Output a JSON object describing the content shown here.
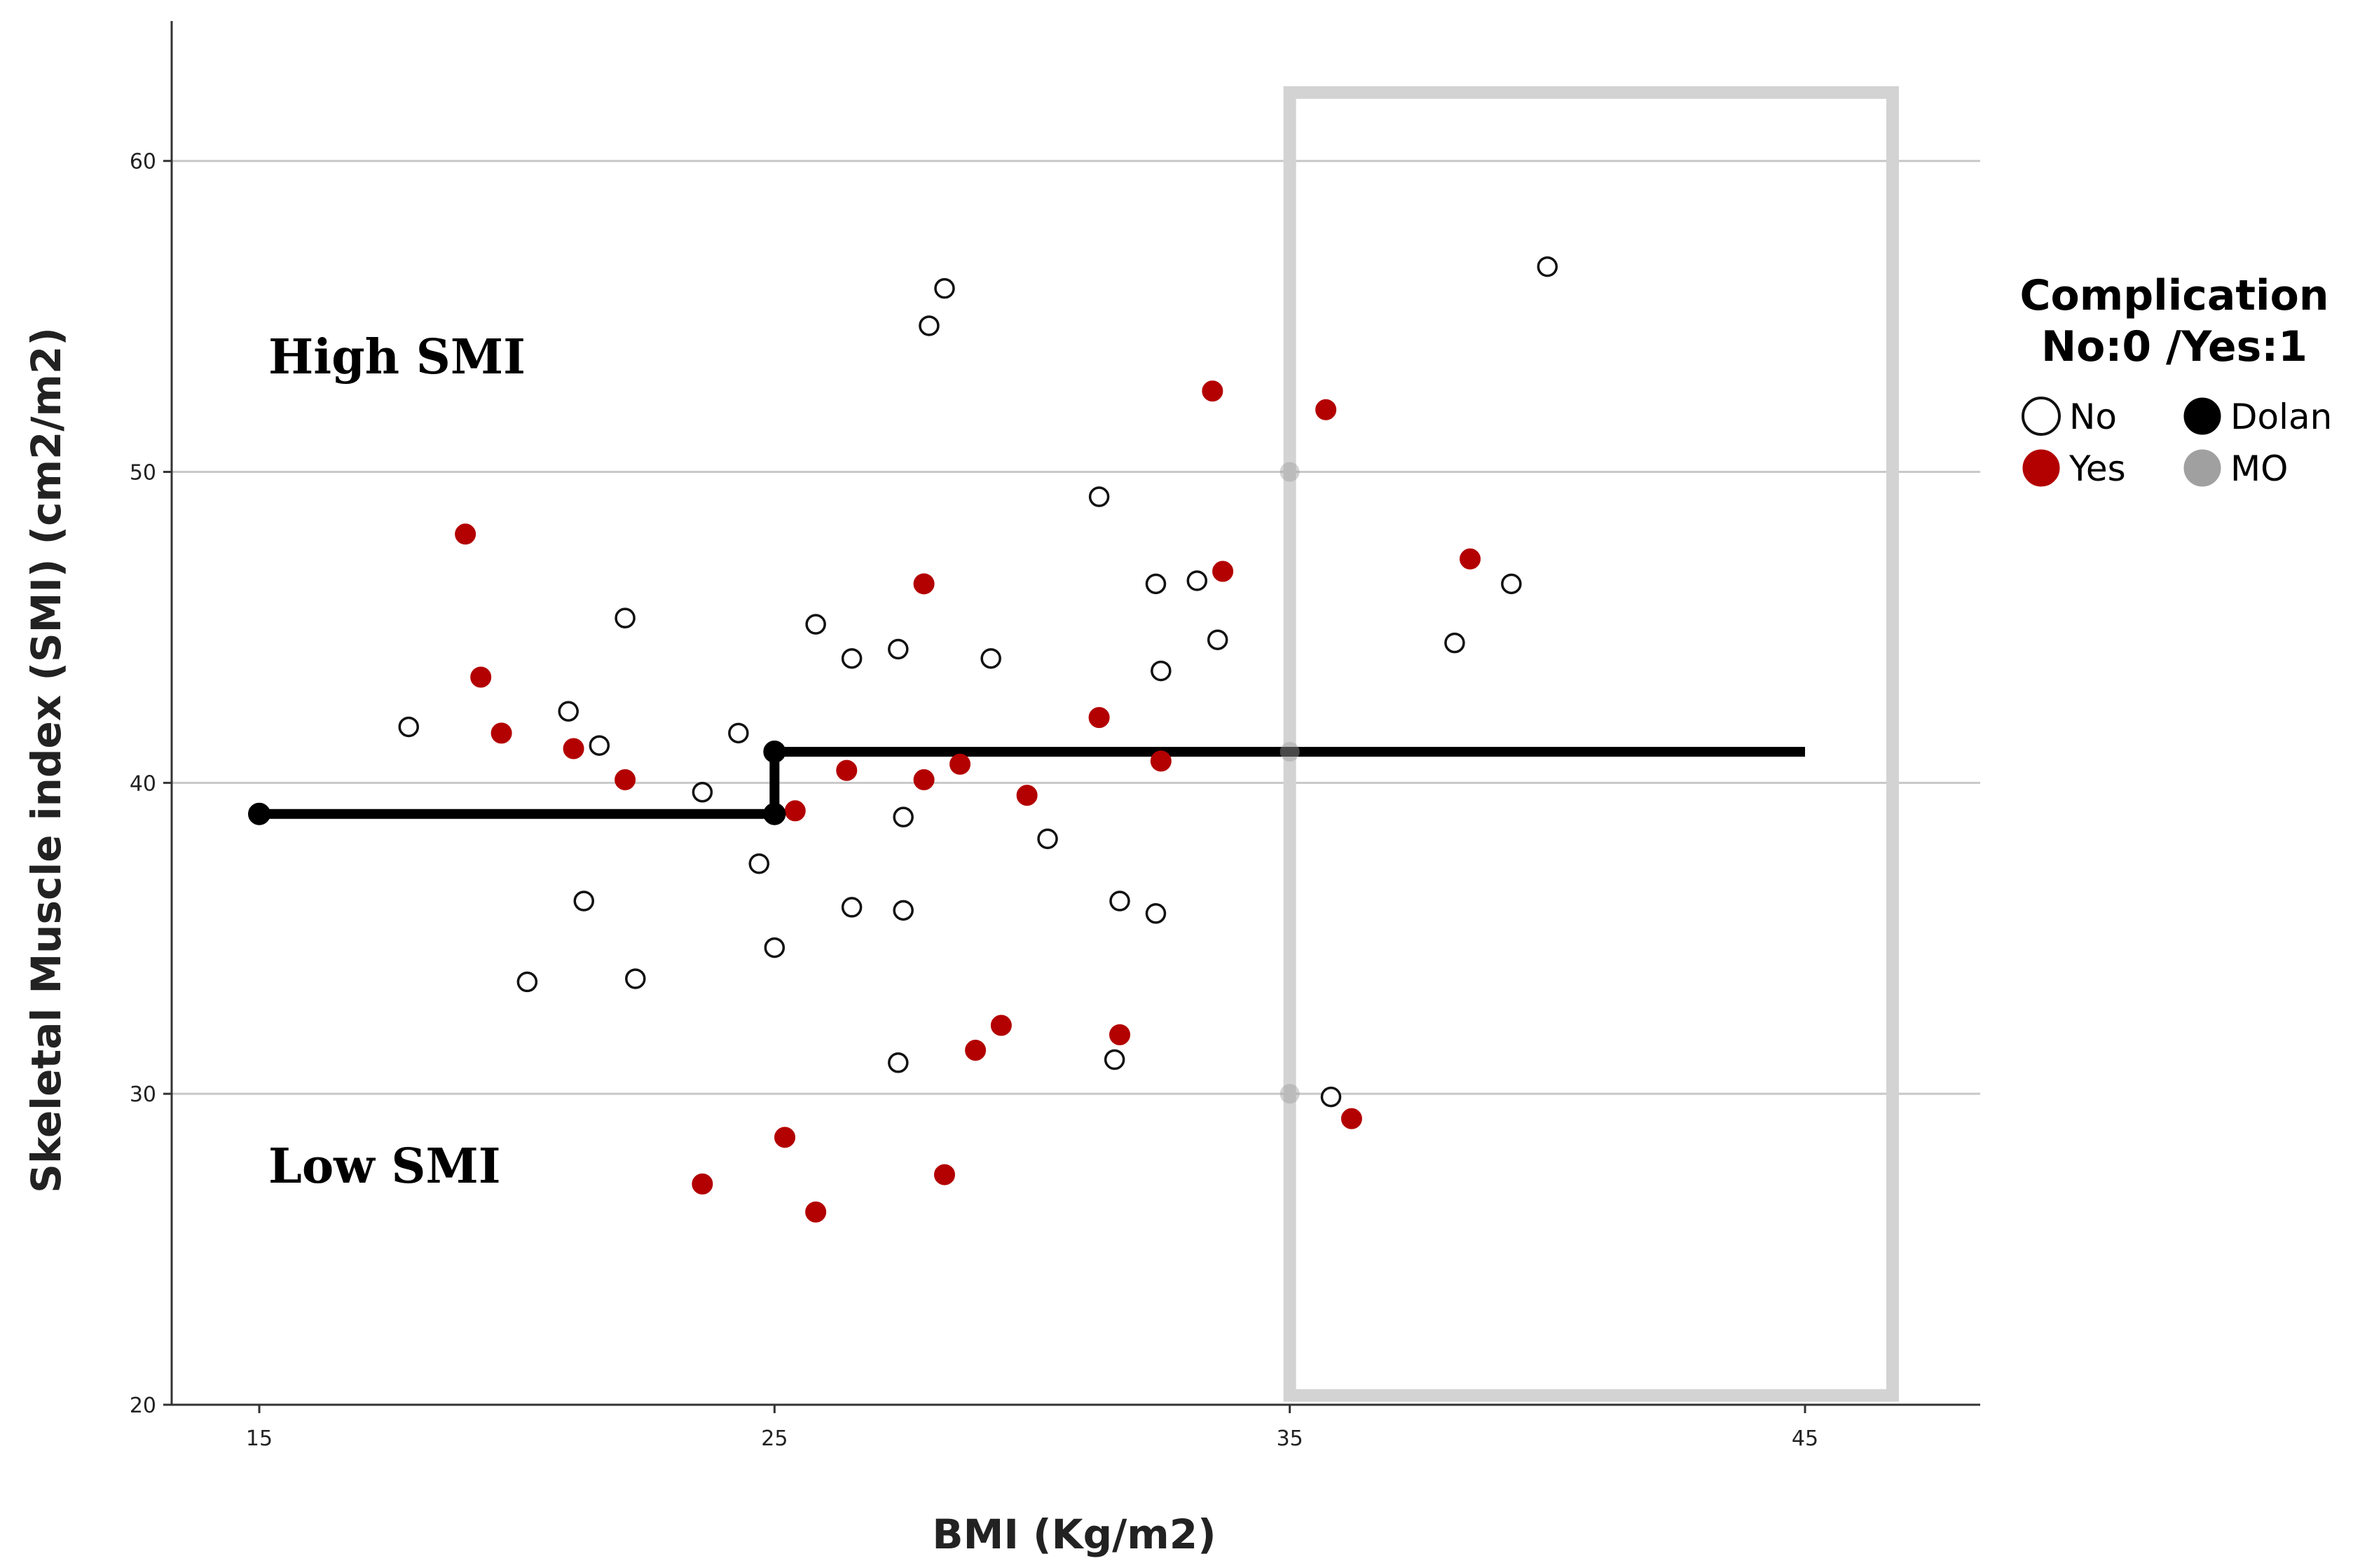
{
  "chart_data": {
    "type": "scatter",
    "xlabel": "BMI (Kg/m2)",
    "ylabel": "Skeletal Muscle index (SMI) (cm2/m2)",
    "xlim": [
      13.3,
      48.4
    ],
    "ylim": [
      20,
      64.5
    ],
    "xticks": [
      "15",
      "25",
      "35",
      "45"
    ],
    "yticks": [
      "20",
      "30",
      "40",
      "50",
      "60"
    ],
    "grid": "horizontal",
    "annotations": {
      "high": "High SMI",
      "low": "Low SMI"
    },
    "legend": {
      "title_line1": "Complication",
      "title_line2": "No:0 /Yes:1",
      "placement": "right",
      "items": [
        {
          "label": "No",
          "style": "open"
        },
        {
          "label": "Dolan",
          "style": "black"
        },
        {
          "label": "Yes",
          "style": "red"
        },
        {
          "label": "MO",
          "style": "gray"
        }
      ]
    },
    "colors": {
      "yes": "#b30000",
      "no": "#ffffff",
      "dolan": "#000000",
      "mo": "#a0a0a0",
      "box": "#d3d3d3",
      "grid": "#c8c8c8"
    },
    "highlight_box": {
      "x0": 35,
      "x1": 46.7,
      "y0": 20.3,
      "y1": 62.2
    },
    "series": [
      {
        "name": "No",
        "points": [
          [
            17.9,
            41.8
          ],
          [
            20.2,
            33.6
          ],
          [
            21.0,
            42.3
          ],
          [
            21.3,
            36.2
          ],
          [
            21.6,
            41.2
          ],
          [
            22.1,
            45.3
          ],
          [
            22.3,
            33.7
          ],
          [
            23.6,
            39.7
          ],
          [
            24.3,
            41.6
          ],
          [
            24.7,
            37.4
          ],
          [
            25.0,
            34.7
          ],
          [
            25.8,
            45.1
          ],
          [
            26.5,
            44.0
          ],
          [
            26.5,
            36.0
          ],
          [
            27.4,
            44.3
          ],
          [
            27.5,
            38.9
          ],
          [
            27.5,
            35.9
          ],
          [
            27.4,
            31.0
          ],
          [
            28.0,
            54.7
          ],
          [
            28.3,
            55.9
          ],
          [
            29.2,
            44.0
          ],
          [
            30.3,
            38.2
          ],
          [
            31.3,
            49.2
          ],
          [
            31.6,
            31.1
          ],
          [
            31.7,
            36.2
          ],
          [
            32.4,
            46.4
          ],
          [
            32.5,
            43.6
          ],
          [
            32.4,
            35.8
          ],
          [
            33.2,
            46.5
          ],
          [
            33.6,
            44.6
          ],
          [
            35.8,
            29.9
          ],
          [
            38.2,
            44.5
          ],
          [
            39.3,
            46.4
          ],
          [
            40.0,
            56.6
          ]
        ]
      },
      {
        "name": "Yes",
        "points": [
          [
            19.0,
            48.0
          ],
          [
            19.3,
            43.4
          ],
          [
            19.7,
            41.6
          ],
          [
            21.1,
            41.1
          ],
          [
            22.1,
            40.1
          ],
          [
            23.6,
            27.1
          ],
          [
            25.2,
            28.6
          ],
          [
            25.4,
            39.1
          ],
          [
            25.8,
            26.2
          ],
          [
            26.4,
            40.4
          ],
          [
            27.9,
            46.4
          ],
          [
            27.9,
            40.1
          ],
          [
            28.3,
            27.4
          ],
          [
            28.6,
            40.6
          ],
          [
            28.9,
            31.4
          ],
          [
            29.4,
            32.2
          ],
          [
            29.9,
            39.6
          ],
          [
            31.3,
            42.1
          ],
          [
            31.7,
            31.9
          ],
          [
            32.5,
            40.7
          ],
          [
            33.5,
            52.6
          ],
          [
            33.7,
            46.8
          ],
          [
            35.7,
            52.0
          ],
          [
            36.2,
            29.2
          ],
          [
            38.5,
            47.2
          ]
        ]
      },
      {
        "name": "Dolan",
        "points": [
          [
            15.0,
            39.0
          ],
          [
            25.0,
            39.0
          ],
          [
            25.0,
            41.0
          ]
        ],
        "line": [
          [
            15.0,
            39.0
          ],
          [
            25.0,
            39.0
          ],
          [
            25.0,
            41.0
          ],
          [
            45.0,
            41.0
          ]
        ]
      },
      {
        "name": "MO",
        "points": [
          [
            35.0,
            50.0
          ],
          [
            35.0,
            41.0
          ],
          [
            35.0,
            30.0
          ]
        ]
      }
    ]
  }
}
